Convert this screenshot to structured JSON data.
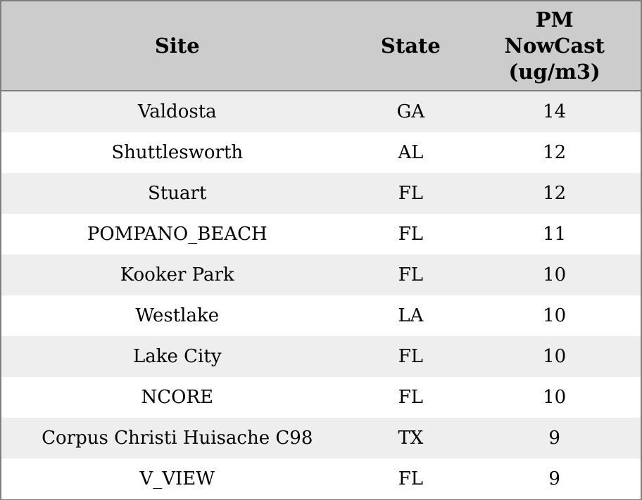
{
  "table": {
    "columns": [
      {
        "id": "site",
        "label": "Site"
      },
      {
        "id": "state",
        "label": "State"
      },
      {
        "id": "pm_nowcast",
        "label": "PM NowCast (ug/m3)",
        "lines": [
          "PM",
          "NowCast",
          "(ug/m3)"
        ]
      }
    ],
    "rows": [
      {
        "site": "Valdosta",
        "state": "GA",
        "pm_nowcast": "14"
      },
      {
        "site": "Shuttlesworth",
        "state": "AL",
        "pm_nowcast": "12"
      },
      {
        "site": "Stuart",
        "state": "FL",
        "pm_nowcast": "12"
      },
      {
        "site": "POMPANO_BEACH",
        "state": "FL",
        "pm_nowcast": "11"
      },
      {
        "site": "Kooker Park",
        "state": "FL",
        "pm_nowcast": "10"
      },
      {
        "site": "Westlake",
        "state": "LA",
        "pm_nowcast": "10"
      },
      {
        "site": "Lake City",
        "state": "FL",
        "pm_nowcast": "10"
      },
      {
        "site": "NCORE",
        "state": "FL",
        "pm_nowcast": "10"
      },
      {
        "site": "Corpus Christi Huisache C98",
        "state": "TX",
        "pm_nowcast": "9"
      },
      {
        "site": "V_VIEW",
        "state": "FL",
        "pm_nowcast": "9"
      }
    ]
  },
  "chart_data": {
    "type": "table",
    "title": "",
    "columns": [
      "Site",
      "State",
      "PM NowCast (ug/m3)"
    ],
    "rows": [
      [
        "Valdosta",
        "GA",
        14
      ],
      [
        "Shuttlesworth",
        "AL",
        12
      ],
      [
        "Stuart",
        "FL",
        12
      ],
      [
        "POMPANO_BEACH",
        "FL",
        11
      ],
      [
        "Kooker Park",
        "FL",
        10
      ],
      [
        "Westlake",
        "LA",
        10
      ],
      [
        "Lake City",
        "FL",
        10
      ],
      [
        "NCORE",
        "FL",
        10
      ],
      [
        "Corpus Christi Huisache C98",
        "TX",
        9
      ],
      [
        "V_VIEW",
        "FL",
        9
      ]
    ],
    "layout_hints": {
      "header_background": "#cccccc",
      "row_stripe_odd": "#eeeeee",
      "row_stripe_even": "#ffffff",
      "border_color": "#7e7e7e",
      "text_align": "center",
      "sorted_by": "PM NowCast (ug/m3) descending"
    }
  },
  "colors": {
    "header_bg": "#cccccc",
    "stripe_bg": "#eeeeee",
    "row_bg": "#ffffff",
    "border": "#7e7e7e",
    "text": "#000000"
  }
}
